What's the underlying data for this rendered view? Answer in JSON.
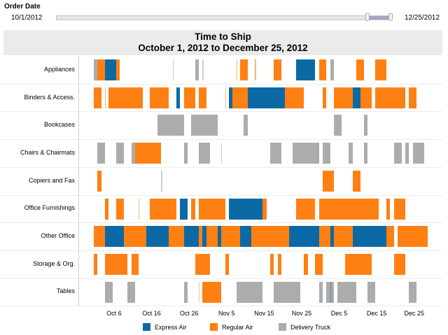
{
  "filter": {
    "title": "Order Date",
    "min_label": "10/1/2012",
    "max_label": "12/25/2012",
    "selected_range_fraction": [
      0.925,
      1.0
    ]
  },
  "chart_data": {
    "type": "gantt",
    "title": "Time to Ship",
    "subtitle": "October 1, 2012 to December 25, 2012",
    "x_range": [
      "2012-09-27",
      "2013-01-02"
    ],
    "x_ticks": [
      {
        "date": "2012-10-06",
        "label": "Oct 6"
      },
      {
        "date": "2012-10-16",
        "label": "Oct 16"
      },
      {
        "date": "2012-10-26",
        "label": "Oct 26"
      },
      {
        "date": "2012-11-05",
        "label": "Nov 5"
      },
      {
        "date": "2012-11-15",
        "label": "Nov 15"
      },
      {
        "date": "2012-11-25",
        "label": "Nov 25"
      },
      {
        "date": "2012-12-05",
        "label": "Dec 5"
      },
      {
        "date": "2012-12-15",
        "label": "Dec 15"
      },
      {
        "date": "2012-12-25",
        "label": "Dec 25"
      }
    ],
    "grid": "horizontal row separators",
    "legend_position": "bottom",
    "legend": [
      {
        "key": "express",
        "label": "Express Air",
        "color": "#0b6aa5"
      },
      {
        "key": "regular",
        "label": "Regular Air",
        "color": "#ff8012"
      },
      {
        "key": "truck",
        "label": "Delivery Truck",
        "color": "#acacac"
      }
    ],
    "categories": [
      {
        "name": "Appliances",
        "bars": [
          [
            "2012-10-01",
            1,
            "truck"
          ],
          [
            "2012-10-02",
            2,
            "regular"
          ],
          [
            "2012-10-04",
            3,
            "express"
          ],
          [
            "2012-10-07",
            1,
            "regular"
          ],
          [
            "2012-10-22",
            0,
            "truck"
          ],
          [
            "2012-10-28",
            1,
            "truck"
          ],
          [
            "2012-10-30",
            0,
            "truck"
          ],
          [
            "2012-11-08",
            0,
            "regular"
          ],
          [
            "2012-11-09",
            2,
            "regular"
          ],
          [
            "2012-11-13",
            0,
            "regular"
          ],
          [
            "2012-11-18",
            2,
            "regular"
          ],
          [
            "2012-11-24",
            5,
            "express"
          ],
          [
            "2012-11-30",
            2,
            "regular"
          ],
          [
            "2012-12-03",
            1,
            "truck"
          ],
          [
            "2012-12-10",
            2,
            "regular"
          ],
          [
            "2012-12-15",
            3,
            "regular"
          ]
        ]
      },
      {
        "name": "Binders & Access.",
        "bars": [
          [
            "2012-10-01",
            2,
            "regular"
          ],
          [
            "2012-10-04",
            0,
            "regular"
          ],
          [
            "2012-10-05",
            9,
            "regular"
          ],
          [
            "2012-10-16",
            5,
            "regular"
          ],
          [
            "2012-10-23",
            1,
            "express"
          ],
          [
            "2012-10-25",
            3,
            "regular"
          ],
          [
            "2012-10-29",
            2,
            "regular"
          ],
          [
            "2012-11-05",
            0,
            "regular"
          ],
          [
            "2012-11-06",
            1,
            "express"
          ],
          [
            "2012-11-07",
            4,
            "regular"
          ],
          [
            "2012-11-11",
            10,
            "express"
          ],
          [
            "2012-11-21",
            5,
            "regular"
          ],
          [
            "2012-12-01",
            1,
            "regular"
          ],
          [
            "2012-12-04",
            5,
            "regular"
          ],
          [
            "2012-12-09",
            2,
            "express"
          ],
          [
            "2012-12-11",
            3,
            "regular"
          ],
          [
            "2012-12-15",
            8,
            "regular"
          ],
          [
            "2012-12-24",
            2,
            "regular"
          ]
        ]
      },
      {
        "name": "Bookcases",
        "bars": [
          [
            "2012-10-18",
            7,
            "truck"
          ],
          [
            "2012-10-27",
            7,
            "truck"
          ],
          [
            "2012-11-10",
            1,
            "truck"
          ],
          [
            "2012-12-04",
            2,
            "truck"
          ],
          [
            "2012-12-12",
            1,
            "truck"
          ]
        ]
      },
      {
        "name": "Chairs & Chairmats",
        "bars": [
          [
            "2012-10-02",
            2,
            "truck"
          ],
          [
            "2012-10-07",
            2,
            "truck"
          ],
          [
            "2012-10-11",
            1,
            "truck"
          ],
          [
            "2012-10-12",
            7,
            "regular"
          ],
          [
            "2012-10-25",
            1,
            "truck"
          ],
          [
            "2012-10-29",
            3,
            "truck"
          ],
          [
            "2012-11-04",
            0,
            "truck"
          ],
          [
            "2012-11-17",
            3,
            "truck"
          ],
          [
            "2012-11-23",
            7,
            "truck"
          ],
          [
            "2012-12-01",
            2,
            "truck"
          ],
          [
            "2012-12-08",
            1,
            "truck"
          ],
          [
            "2012-12-12",
            1,
            "truck"
          ],
          [
            "2012-12-20",
            2,
            "truck"
          ],
          [
            "2012-12-23",
            1,
            "truck"
          ],
          [
            "2012-12-25",
            3,
            "truck"
          ]
        ]
      },
      {
        "name": "Copiers and Fax",
        "bars": [
          [
            "2012-10-02",
            1,
            "regular"
          ],
          [
            "2012-10-19",
            0,
            "truck"
          ],
          [
            "2012-12-01",
            3,
            "regular"
          ],
          [
            "2012-12-09",
            2,
            "regular"
          ]
        ]
      },
      {
        "name": "Office Furnishings",
        "bars": [
          [
            "2012-10-04",
            1,
            "regular"
          ],
          [
            "2012-10-07",
            2,
            "regular"
          ],
          [
            "2012-10-13",
            0,
            "regular"
          ],
          [
            "2012-10-16",
            7,
            "regular"
          ],
          [
            "2012-10-24",
            2,
            "express"
          ],
          [
            "2012-10-27",
            1,
            "regular"
          ],
          [
            "2012-10-29",
            7,
            "regular"
          ],
          [
            "2012-11-06",
            9,
            "express"
          ],
          [
            "2012-11-15",
            1,
            "regular"
          ],
          [
            "2012-11-24",
            5,
            "regular"
          ],
          [
            "2012-11-30",
            16,
            "regular"
          ],
          [
            "2012-12-18",
            1,
            "regular"
          ],
          [
            "2012-12-20",
            3,
            "regular"
          ]
        ]
      },
      {
        "name": "Other Office",
        "bars": [
          [
            "2012-10-01",
            3,
            "regular"
          ],
          [
            "2012-10-04",
            5,
            "express"
          ],
          [
            "2012-10-09",
            6,
            "regular"
          ],
          [
            "2012-10-15",
            6,
            "express"
          ],
          [
            "2012-10-21",
            4,
            "regular"
          ],
          [
            "2012-10-25",
            4,
            "express"
          ],
          [
            "2012-10-29",
            1,
            "regular"
          ],
          [
            "2012-10-30",
            1,
            "express"
          ],
          [
            "2012-10-31",
            3,
            "regular"
          ],
          [
            "2012-11-03",
            1,
            "express"
          ],
          [
            "2012-11-04",
            5,
            "regular"
          ],
          [
            "2012-11-09",
            3,
            "express"
          ],
          [
            "2012-11-12",
            10,
            "regular"
          ],
          [
            "2012-11-22",
            8,
            "express"
          ],
          [
            "2012-11-30",
            3,
            "regular"
          ],
          [
            "2012-12-03",
            1,
            "express"
          ],
          [
            "2012-12-04",
            5,
            "regular"
          ],
          [
            "2012-12-09",
            9,
            "express"
          ],
          [
            "2012-12-18",
            2,
            "regular"
          ],
          [
            "2012-12-21",
            8,
            "regular"
          ]
        ]
      },
      {
        "name": "Storage & Org.",
        "bars": [
          [
            "2012-10-01",
            1,
            "regular"
          ],
          [
            "2012-10-04",
            6,
            "regular"
          ],
          [
            "2012-10-11",
            2,
            "regular"
          ],
          [
            "2012-10-28",
            4,
            "regular"
          ],
          [
            "2012-11-05",
            1,
            "regular"
          ],
          [
            "2012-11-17",
            1,
            "regular"
          ],
          [
            "2012-11-19",
            1,
            "regular"
          ],
          [
            "2012-11-26",
            1,
            "regular"
          ],
          [
            "2012-11-29",
            2,
            "regular"
          ],
          [
            "2012-12-07",
            7,
            "regular"
          ],
          [
            "2012-12-20",
            3,
            "regular"
          ]
        ]
      },
      {
        "name": "Tables",
        "bars": [
          [
            "2012-10-04",
            2,
            "truck"
          ],
          [
            "2012-10-10",
            2,
            "truck"
          ],
          [
            "2012-10-25",
            1,
            "truck"
          ],
          [
            "2012-10-29",
            0,
            "truck"
          ],
          [
            "2012-10-30",
            5,
            "regular"
          ],
          [
            "2012-11-08",
            7,
            "truck"
          ],
          [
            "2012-11-18",
            7,
            "truck"
          ],
          [
            "2012-11-30",
            1,
            "truck"
          ],
          [
            "2012-12-02",
            2,
            "truck"
          ],
          [
            "2012-12-05",
            5,
            "truck"
          ],
          [
            "2012-12-03",
            0,
            "express"
          ],
          [
            "2012-12-13",
            2,
            "truck"
          ],
          [
            "2012-12-24",
            2,
            "truck"
          ]
        ]
      }
    ]
  }
}
